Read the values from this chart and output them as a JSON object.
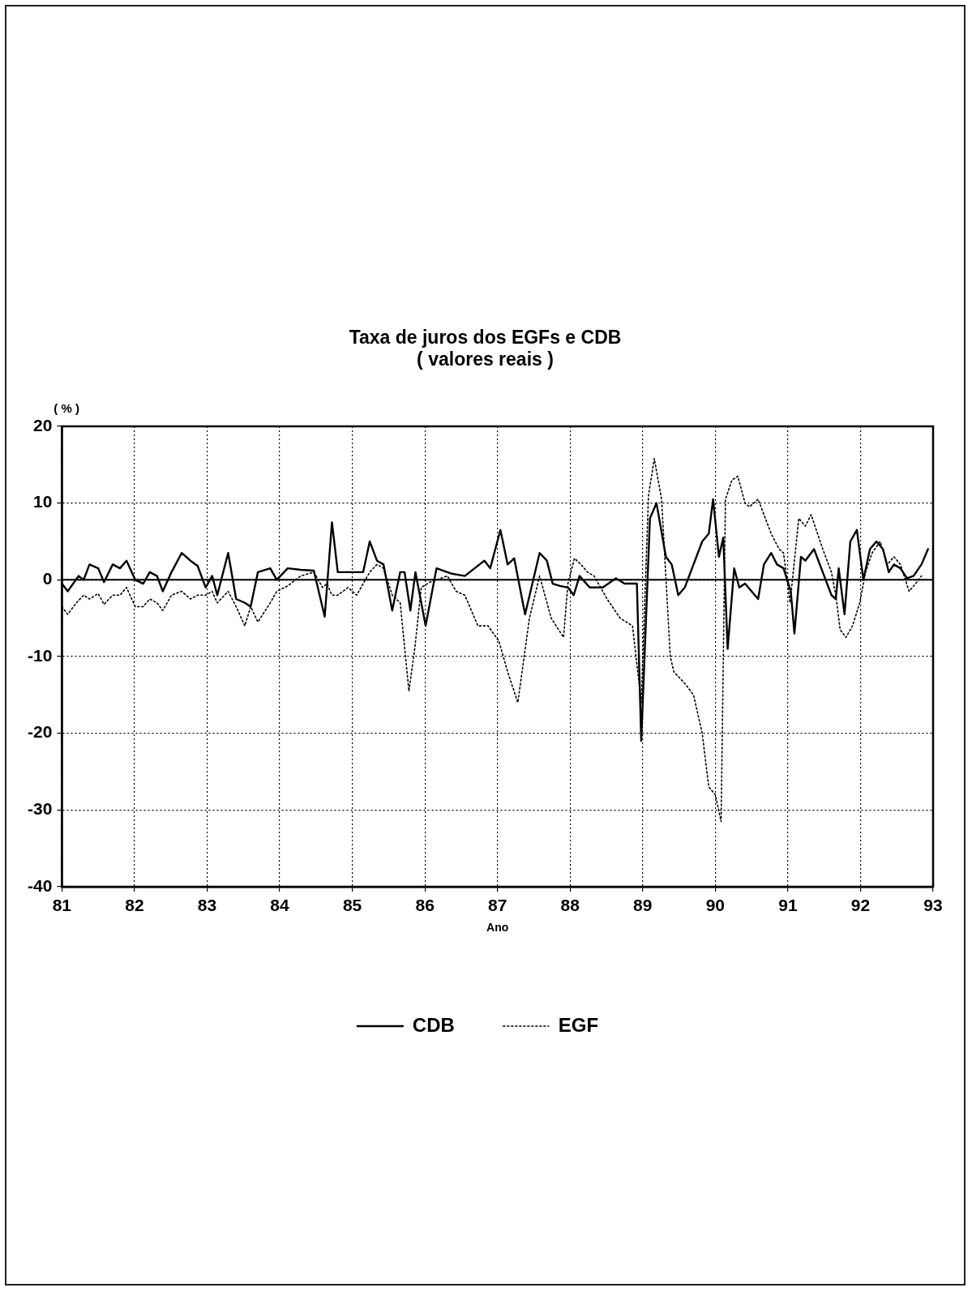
{
  "chart_data": {
    "type": "line",
    "title": "Taxa de juros dos EGFs e CDB",
    "subtitle": "( valores reais )",
    "xlabel": "Ano",
    "ylabel": "( % )",
    "xlim": [
      81,
      93
    ],
    "xticks": [
      81,
      82,
      83,
      84,
      85,
      86,
      87,
      88,
      89,
      90,
      91,
      92,
      93
    ],
    "ylim": [
      -40,
      20
    ],
    "yticks": [
      -40,
      -30,
      -20,
      -10,
      0,
      10,
      20
    ],
    "grid": true,
    "legend": "bottom",
    "marker": "none",
    "ref_lines": [
      {
        "axis": "y",
        "value": 0,
        "color": "#000000",
        "line_style": "solid"
      }
    ],
    "series": [
      {
        "name": "CDB",
        "color": "#000000",
        "line_style": "solid",
        "x": [
          81.0,
          81.08,
          81.23,
          81.3,
          81.38,
          81.5,
          81.58,
          81.7,
          81.8,
          81.89,
          82.01,
          82.12,
          82.21,
          82.31,
          82.39,
          82.51,
          82.65,
          82.77,
          82.87,
          82.98,
          83.07,
          83.14,
          83.29,
          83.4,
          83.52,
          83.6,
          83.7,
          83.87,
          83.96,
          84.11,
          84.29,
          84.47,
          84.62,
          84.72,
          84.8,
          85.0,
          85.15,
          85.24,
          85.34,
          85.43,
          85.55,
          85.66,
          85.72,
          85.8,
          85.87,
          86.01,
          86.16,
          86.37,
          86.55,
          86.82,
          86.9,
          87.04,
          87.14,
          87.23,
          87.38,
          87.58,
          87.68,
          87.76,
          87.86,
          87.97,
          88.05,
          88.13,
          88.27,
          88.45,
          88.63,
          88.75,
          88.92,
          88.98,
          89.1,
          89.19,
          89.32,
          89.4,
          89.49,
          89.58,
          89.7,
          89.82,
          89.91,
          89.97,
          90.05,
          90.11,
          90.17,
          90.26,
          90.33,
          90.41,
          90.59,
          90.67,
          90.77,
          90.85,
          90.94,
          91.04,
          91.09,
          91.18,
          91.24,
          91.36,
          91.48,
          91.6,
          91.66,
          91.7,
          91.78,
          91.86,
          91.95,
          92.04,
          92.13,
          92.22,
          92.31,
          92.39,
          92.46,
          92.55,
          92.64,
          92.73,
          92.84,
          92.93
        ],
        "values": [
          -0.5,
          -1.5,
          0.5,
          0,
          2,
          1.5,
          -0.3,
          2,
          1.5,
          2.5,
          0,
          -0.5,
          1,
          0.5,
          -1.5,
          1,
          3.5,
          2.5,
          1.8,
          -1,
          0.5,
          -2,
          3.5,
          -2.5,
          -3,
          -3.5,
          1,
          1.5,
          0,
          1.5,
          1.3,
          1.2,
          -4.8,
          7.5,
          1,
          1,
          1,
          5,
          2.5,
          2,
          -4,
          1,
          1,
          -4,
          1,
          -6,
          1.5,
          0.8,
          0.5,
          2.5,
          1.5,
          6.5,
          2,
          2.8,
          -4.5,
          3.5,
          2.5,
          -0.5,
          -0.8,
          -1,
          -2,
          0.5,
          -1,
          -1,
          0.2,
          -0.5,
          -0.5,
          -21,
          8,
          10,
          3,
          2,
          -2,
          -1,
          2,
          5,
          6,
          10.5,
          3,
          5.5,
          -9,
          1.5,
          -1,
          -0.5,
          -2.5,
          2,
          3.5,
          2,
          1.5,
          -1.5,
          -7,
          3,
          2.5,
          4,
          1,
          -2,
          -2.5,
          1.5,
          -4.5,
          5,
          6.5,
          0,
          4,
          5,
          4,
          1,
          2,
          1.5,
          0.2,
          0.5,
          2,
          4
        ]
      },
      {
        "name": "EGF",
        "color": "#000000",
        "line_style": "dotted",
        "x": [
          81.0,
          81.08,
          81.2,
          81.3,
          81.38,
          81.5,
          81.58,
          81.7,
          81.8,
          81.89,
          82.01,
          82.12,
          82.21,
          82.31,
          82.39,
          82.51,
          82.65,
          82.77,
          82.87,
          82.98,
          83.07,
          83.14,
          83.29,
          83.4,
          83.52,
          83.6,
          83.7,
          83.87,
          83.96,
          84.11,
          84.29,
          84.47,
          84.59,
          84.65,
          84.72,
          84.8,
          84.94,
          85.06,
          85.15,
          85.24,
          85.34,
          85.43,
          85.55,
          85.66,
          85.78,
          85.86,
          85.95,
          86.07,
          86.31,
          86.43,
          86.55,
          86.73,
          86.87,
          87.02,
          87.14,
          87.28,
          87.44,
          87.58,
          87.74,
          87.91,
          87.97,
          88.06,
          88.15,
          88.24,
          88.33,
          88.51,
          88.69,
          88.86,
          88.98,
          89.08,
          89.16,
          89.26,
          89.38,
          89.43,
          89.58,
          89.7,
          89.82,
          89.91,
          90.0,
          90.08,
          90.14,
          90.23,
          90.31,
          90.41,
          90.47,
          90.59,
          90.71,
          90.77,
          90.88,
          90.94,
          91.03,
          91.15,
          91.24,
          91.32,
          91.48,
          91.6,
          91.66,
          91.72,
          91.8,
          91.89,
          91.99,
          92.07,
          92.16,
          92.27,
          92.37,
          92.46,
          92.55,
          92.67,
          92.76,
          92.84
        ],
        "values": [
          -3.5,
          -4.5,
          -3,
          -2,
          -2.5,
          -1.8,
          -3.2,
          -2,
          -2,
          -1,
          -3.5,
          -3.5,
          -2.5,
          -3,
          -4,
          -2,
          -1.5,
          -2.5,
          -2,
          -2,
          -1.5,
          -3,
          -1.5,
          -3.5,
          -6,
          -3.5,
          -5.5,
          -3,
          -1.5,
          -0.8,
          0.5,
          1,
          -1,
          -0.5,
          -2,
          -2,
          -1,
          -2,
          -0.5,
          1,
          2,
          1.5,
          -2,
          -3,
          -14.5,
          -9,
          -1,
          -0.3,
          0.5,
          -1.5,
          -2,
          -6,
          -6,
          -8,
          -12,
          -16,
          -5,
          0.5,
          -5,
          -7.5,
          -0.5,
          2.8,
          2,
          1,
          0.5,
          -2.5,
          -5,
          -6,
          -16,
          11,
          15.8,
          10.5,
          -10,
          -12,
          -13.5,
          -15,
          -20,
          -27,
          -28,
          -31.5,
          10.5,
          13,
          13.5,
          10,
          9.5,
          10.5,
          7.5,
          6,
          4,
          3.5,
          -3,
          8,
          7,
          8.5,
          4,
          1,
          -2,
          -6.5,
          -7.5,
          -6,
          -3,
          1,
          3.5,
          5,
          2,
          3,
          2,
          -1.5,
          -0.5,
          0.5
        ]
      }
    ]
  }
}
